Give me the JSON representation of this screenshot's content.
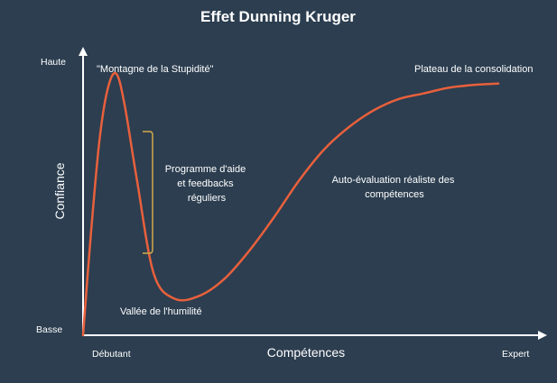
{
  "chart_data": {
    "type": "line",
    "title": "Effet Dunning Kruger",
    "xlabel": "Compétences",
    "ylabel": "Confiance",
    "x_ticks": [
      "Débutant",
      "Expert"
    ],
    "y_ticks": [
      "Basse",
      "Haute"
    ],
    "xlim": [
      0,
      100
    ],
    "ylim": [
      0,
      100
    ],
    "grid": false,
    "series": [
      {
        "color": "#e8603c",
        "x": [
          0,
          2,
          4,
          6,
          8,
          10,
          13,
          17,
          22,
          28,
          34,
          40,
          46,
          52,
          58,
          64,
          70,
          76,
          82,
          88,
          94,
          100
        ],
        "y": [
          0,
          38,
          70,
          88,
          93,
          82,
          55,
          22,
          13,
          14,
          20,
          30,
          42,
          55,
          66,
          74,
          80,
          84,
          86,
          88,
          89,
          89.5
        ]
      }
    ],
    "annotations": [
      {
        "text": "\"Montagne de la Stupidité\""
      },
      {
        "text": "Plateau de la consolidation"
      },
      {
        "lines": [
          "Programme d'aide",
          "et feedbacks",
          "réguliers"
        ]
      },
      {
        "lines": [
          "Auto-évaluation réaliste des",
          "compétences"
        ]
      },
      {
        "text": "Vallée de l'humilité"
      }
    ],
    "bracket_color": "#d4a94a",
    "axis_color": "#ffffff",
    "background": "#2c3e50"
  }
}
